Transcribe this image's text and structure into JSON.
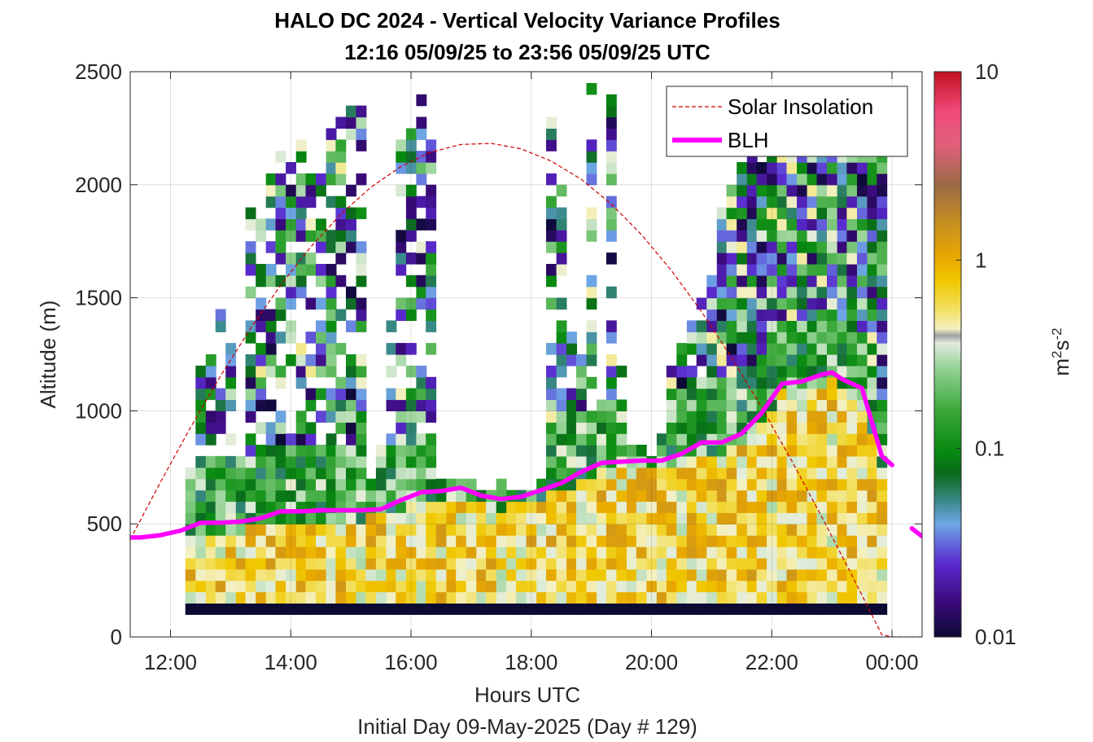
{
  "chart_data": {
    "type": "heatmap",
    "title": "HALO DC 2024 - Vertical Velocity Variance Profiles",
    "subtitle": "12:16 05/09/25 to 23:56 05/09/25  UTC",
    "xlabel": "Hours UTC",
    "xlabel2": "Initial Day 09-May-2025 (Day # 129)",
    "ylabel": "Altitude (m)",
    "xlim_hours": [
      11.33,
      24.5
    ],
    "ylim": [
      0,
      2500
    ],
    "x_ticks": [
      12,
      14,
      16,
      18,
      20,
      22,
      24
    ],
    "x_tick_labels": [
      "12:00",
      "14:00",
      "16:00",
      "18:00",
      "20:00",
      "22:00",
      "00:00"
    ],
    "y_ticks": [
      0,
      500,
      1000,
      1500,
      2000,
      2500
    ],
    "y_tick_labels": [
      "0",
      "500",
      "1000",
      "1500",
      "2000",
      "2500"
    ],
    "grid": true,
    "colorbar": {
      "label": "m²s⁻²",
      "label_base": "m",
      "label_exp1": "2",
      "label_mid": "s",
      "label_exp2": "-2",
      "scale": "log",
      "range": [
        0.01,
        10
      ],
      "ticks": [
        0.01,
        0.1,
        1,
        10
      ],
      "tick_labels": [
        "0.01",
        "0.1",
        "1",
        "10"
      ]
    },
    "legend": {
      "placement": "top-right",
      "entries": [
        "Solar Insolation",
        "BLH"
      ]
    },
    "series_colors": {
      "solar": "#cc0000",
      "blh": "#ff00ff"
    },
    "blh": {
      "name": "BLH",
      "x": [
        11.33,
        11.5,
        11.83,
        12.17,
        12.5,
        12.83,
        13.17,
        13.5,
        13.83,
        14.17,
        14.5,
        14.83,
        15.17,
        15.5,
        15.83,
        16.17,
        16.5,
        16.83,
        17.17,
        17.5,
        17.83,
        18.17,
        18.5,
        18.83,
        19.17,
        19.5,
        19.83,
        20.17,
        20.5,
        20.83,
        21.17,
        21.5,
        21.83,
        22.17,
        22.5,
        22.83,
        23.0,
        23.17,
        23.5,
        23.83,
        24.0
      ],
      "y": [
        440,
        440,
        450,
        470,
        505,
        505,
        510,
        525,
        555,
        555,
        560,
        560,
        560,
        565,
        605,
        640,
        645,
        660,
        625,
        610,
        620,
        650,
        680,
        730,
        770,
        775,
        780,
        780,
        810,
        860,
        860,
        900,
        990,
        1120,
        1130,
        1160,
        1170,
        1140,
        1100,
        800,
        760
      ],
      "segment2_x": [
        24.33,
        24.5
      ],
      "segment2_y": [
        480,
        445
      ]
    },
    "solar_insolation": {
      "name": "Solar Insolation",
      "form": "max(0, sin(pi*(t-10.5)/13.5)) scaled to 2250 m",
      "x": [
        11.33,
        11.83,
        12.33,
        12.83,
        13.33,
        13.83,
        14.33,
        14.83,
        15.33,
        15.83,
        16.33,
        16.83,
        17.33,
        17.83,
        18.33,
        18.83,
        19.33,
        19.83,
        20.33,
        20.83,
        21.33,
        21.83,
        22.33,
        22.83,
        23.33,
        23.83,
        24.0,
        24.5
      ],
      "y": [
        431,
        683,
        925,
        1153,
        1364,
        1555,
        1724,
        1869,
        1988,
        2080,
        2144,
        2178,
        2183,
        2159,
        2105,
        2024,
        1915,
        1780,
        1621,
        1439,
        1236,
        1016,
        780,
        532,
        274,
        10,
        0,
        0
      ]
    },
    "variance_cells": {
      "description": "Columns of 10-minute bins (approx. 12:16 to 23:56), 50 m altitude gates, values in m^2 s^-2 (log colour scale).",
      "columns": [
        {
          "t": 12.33,
          "top": 750
        },
        {
          "t": 12.5,
          "top": 1200
        },
        {
          "t": 12.67,
          "top": 1250
        },
        {
          "t": 12.83,
          "top": 1500
        },
        {
          "t": 13.0,
          "top": 1300
        },
        {
          "t": 13.17,
          "top": 800
        },
        {
          "t": 13.33,
          "top": 1950
        },
        {
          "t": 13.5,
          "top": 1850
        },
        {
          "t": 13.67,
          "top": 2050
        },
        {
          "t": 13.83,
          "top": 2150
        },
        {
          "t": 14.0,
          "top": 2200
        },
        {
          "t": 14.17,
          "top": 2200
        },
        {
          "t": 14.33,
          "top": 2050
        },
        {
          "t": 14.5,
          "top": 2050
        },
        {
          "t": 14.67,
          "top": 2250
        },
        {
          "t": 14.83,
          "top": 2300
        },
        {
          "t": 15.0,
          "top": 2350
        },
        {
          "t": 15.17,
          "top": 2400
        },
        {
          "t": 15.33,
          "top": 700
        },
        {
          "t": 15.5,
          "top": 950
        },
        {
          "t": 15.67,
          "top": 1400
        },
        {
          "t": 15.83,
          "top": 2200
        },
        {
          "t": 16.0,
          "top": 2250
        },
        {
          "t": 16.17,
          "top": 2400
        },
        {
          "t": 16.33,
          "top": 2300
        },
        {
          "t": 16.5,
          "top": 700
        },
        {
          "t": 16.67,
          "top": 700
        },
        {
          "t": 16.83,
          "top": 700
        },
        {
          "t": 17.0,
          "top": 700
        },
        {
          "t": 17.17,
          "top": 650
        },
        {
          "t": 17.33,
          "top": 650
        },
        {
          "t": 17.5,
          "top": 700
        },
        {
          "t": 17.67,
          "top": 650
        },
        {
          "t": 17.83,
          "top": 650
        },
        {
          "t": 18.0,
          "top": 650
        },
        {
          "t": 18.17,
          "top": 700
        },
        {
          "t": 18.33,
          "top": 2350
        },
        {
          "t": 18.5,
          "top": 2050
        },
        {
          "t": 18.67,
          "top": 1350
        },
        {
          "t": 18.83,
          "top": 1250
        },
        {
          "t": 19.0,
          "top": 2500
        },
        {
          "t": 19.17,
          "top": 1100
        },
        {
          "t": 19.33,
          "top": 2500
        },
        {
          "t": 19.5,
          "top": 1300
        },
        {
          "t": 19.67,
          "top": 850
        },
        {
          "t": 19.83,
          "top": 850
        },
        {
          "t": 20.0,
          "top": 800
        },
        {
          "t": 20.17,
          "top": 900
        },
        {
          "t": 20.33,
          "top": 1200
        },
        {
          "t": 20.5,
          "top": 1300
        },
        {
          "t": 20.67,
          "top": 1500
        },
        {
          "t": 20.83,
          "top": 1600
        },
        {
          "t": 21.0,
          "top": 1600
        },
        {
          "t": 21.17,
          "top": 1900
        },
        {
          "t": 21.33,
          "top": 2000
        },
        {
          "t": 21.5,
          "top": 2100
        },
        {
          "t": 21.67,
          "top": 2150
        },
        {
          "t": 21.83,
          "top": 2100
        },
        {
          "t": 22.0,
          "top": 2200
        },
        {
          "t": 22.17,
          "top": 2200
        },
        {
          "t": 22.33,
          "top": 2200
        },
        {
          "t": 22.5,
          "top": 2200
        },
        {
          "t": 22.67,
          "top": 2200
        },
        {
          "t": 22.83,
          "top": 2200
        },
        {
          "t": 23.0,
          "top": 2200
        },
        {
          "t": 23.17,
          "top": 2200
        },
        {
          "t": 23.33,
          "top": 2200
        },
        {
          "t": 23.5,
          "top": 2200
        },
        {
          "t": 23.67,
          "top": 2200
        },
        {
          "t": 23.83,
          "top": 2200
        }
      ],
      "lowest_gate_value": 0.01
    }
  }
}
